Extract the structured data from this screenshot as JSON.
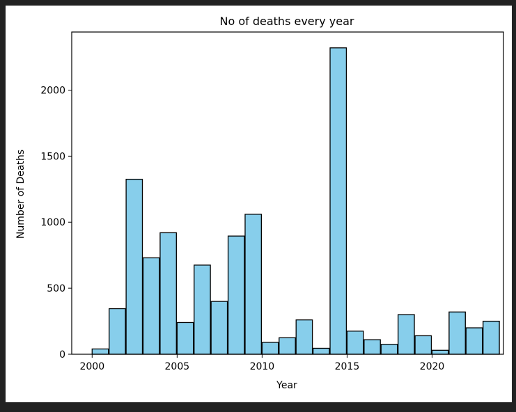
{
  "chart_data": {
    "type": "bar",
    "title": "No of deaths every year",
    "xlabel": "Year",
    "ylabel": "Number of Deaths",
    "bar_color": "#87ceeb",
    "edge_color": "#000000",
    "xlim": [
      1998.8,
      2024.2
    ],
    "ylim": [
      0,
      2440
    ],
    "x_ticks": [
      2000,
      2005,
      2010,
      2015,
      2020
    ],
    "y_ticks": [
      0,
      500,
      1000,
      1500,
      2000
    ],
    "grid": false,
    "legend": "none",
    "bin_width": 0.958,
    "bins": [
      {
        "x": 2000,
        "value": 40
      },
      {
        "x": 2001,
        "value": 345
      },
      {
        "x": 2002,
        "value": 1325
      },
      {
        "x": 2003,
        "value": 730
      },
      {
        "x": 2004,
        "value": 920
      },
      {
        "x": 2005,
        "value": 240
      },
      {
        "x": 2006,
        "value": 675
      },
      {
        "x": 2007,
        "value": 400
      },
      {
        "x": 2008,
        "value": 895
      },
      {
        "x": 2009,
        "value": 1060
      },
      {
        "x": 2010,
        "value": 90
      },
      {
        "x": 2011,
        "value": 125
      },
      {
        "x": 2012,
        "value": 260
      },
      {
        "x": 2013,
        "value": 45
      },
      {
        "x": 2014,
        "value": 2320
      },
      {
        "x": 2015,
        "value": 175
      },
      {
        "x": 2016,
        "value": 110
      },
      {
        "x": 2017,
        "value": 75
      },
      {
        "x": 2018,
        "value": 300
      },
      {
        "x": 2019,
        "value": 140
      },
      {
        "x": 2020,
        "value": 30
      },
      {
        "x": 2021,
        "value": 320
      },
      {
        "x": 2022,
        "value": 200
      },
      {
        "x": 2023,
        "value": 250
      }
    ]
  }
}
